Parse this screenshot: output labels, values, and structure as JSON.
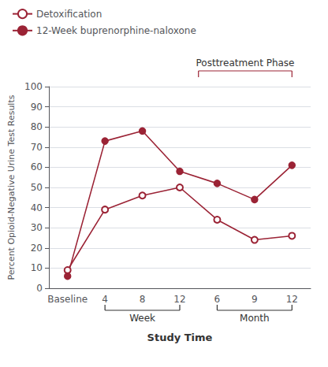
{
  "chart_data": {
    "type": "line",
    "categories": [
      "Baseline",
      "4",
      "8",
      "12",
      "6",
      "9",
      "12"
    ],
    "series": [
      {
        "name": "Detoxification",
        "color": "#9b2335",
        "marker": "open_circle",
        "values": [
          9,
          39,
          46,
          50,
          34,
          24,
          26
        ]
      },
      {
        "name": "12-Week buprenorphine-naloxone",
        "color": "#9b2335",
        "marker": "circle",
        "values": [
          6,
          73,
          78,
          58,
          52,
          44,
          61
        ]
      }
    ],
    "y_label": "Percent Opioid-Negative Urine Test Results",
    "x_label": "Study Time",
    "annotations": [
      "Posttreatment Phase",
      "Week",
      "Month"
    ],
    "ylim": [
      0,
      100
    ],
    "yticks": [
      0,
      10,
      20,
      30,
      40,
      50,
      60,
      70,
      80,
      90,
      100
    ],
    "grid": true,
    "legend": "upper left"
  }
}
